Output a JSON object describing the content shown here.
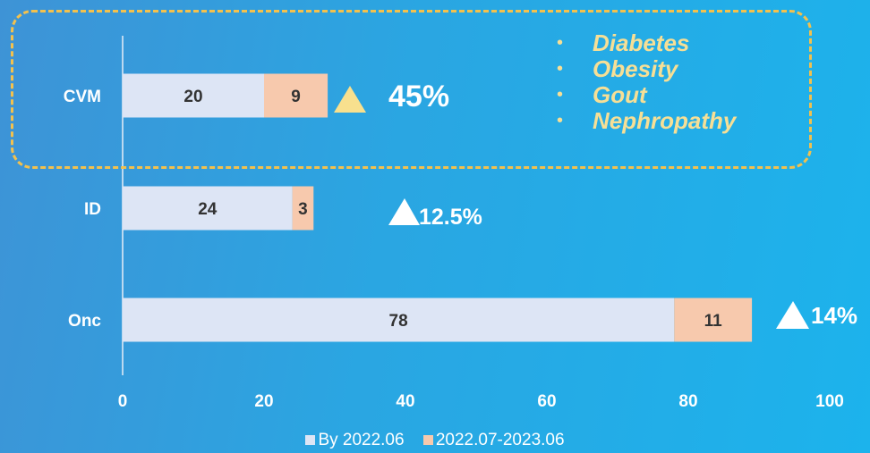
{
  "chart_data": {
    "type": "bar",
    "orientation": "horizontal",
    "stacked": true,
    "categories": [
      "CVM",
      "ID",
      "Onc"
    ],
    "series": [
      {
        "name": "By 2022.06",
        "values": [
          20,
          24,
          78
        ],
        "color": "#dde5f5"
      },
      {
        "name": "2022.07-2023.06",
        "values": [
          9,
          3,
          11
        ],
        "color": "#f7c9ad"
      }
    ],
    "xlim": [
      0,
      100
    ],
    "x_ticks": [
      "0",
      "20",
      "40",
      "60",
      "80",
      "100"
    ],
    "growth_labels": [
      "45%",
      "12.5%",
      "14%"
    ],
    "grid": false,
    "legend_position": "bottom"
  },
  "callout": {
    "items": [
      "Diabetes",
      "Obesity",
      "Gout",
      "Nephropathy"
    ],
    "bullet": "•",
    "border_color": "#f2c14e",
    "text_color": "#f6df96"
  },
  "legend": {
    "swatch": "■"
  },
  "colors": {
    "axis": "#e8eef8",
    "highlight_triangle": "#f8e08e",
    "highlight_text": "#f6df96",
    "white": "#ffffff"
  }
}
